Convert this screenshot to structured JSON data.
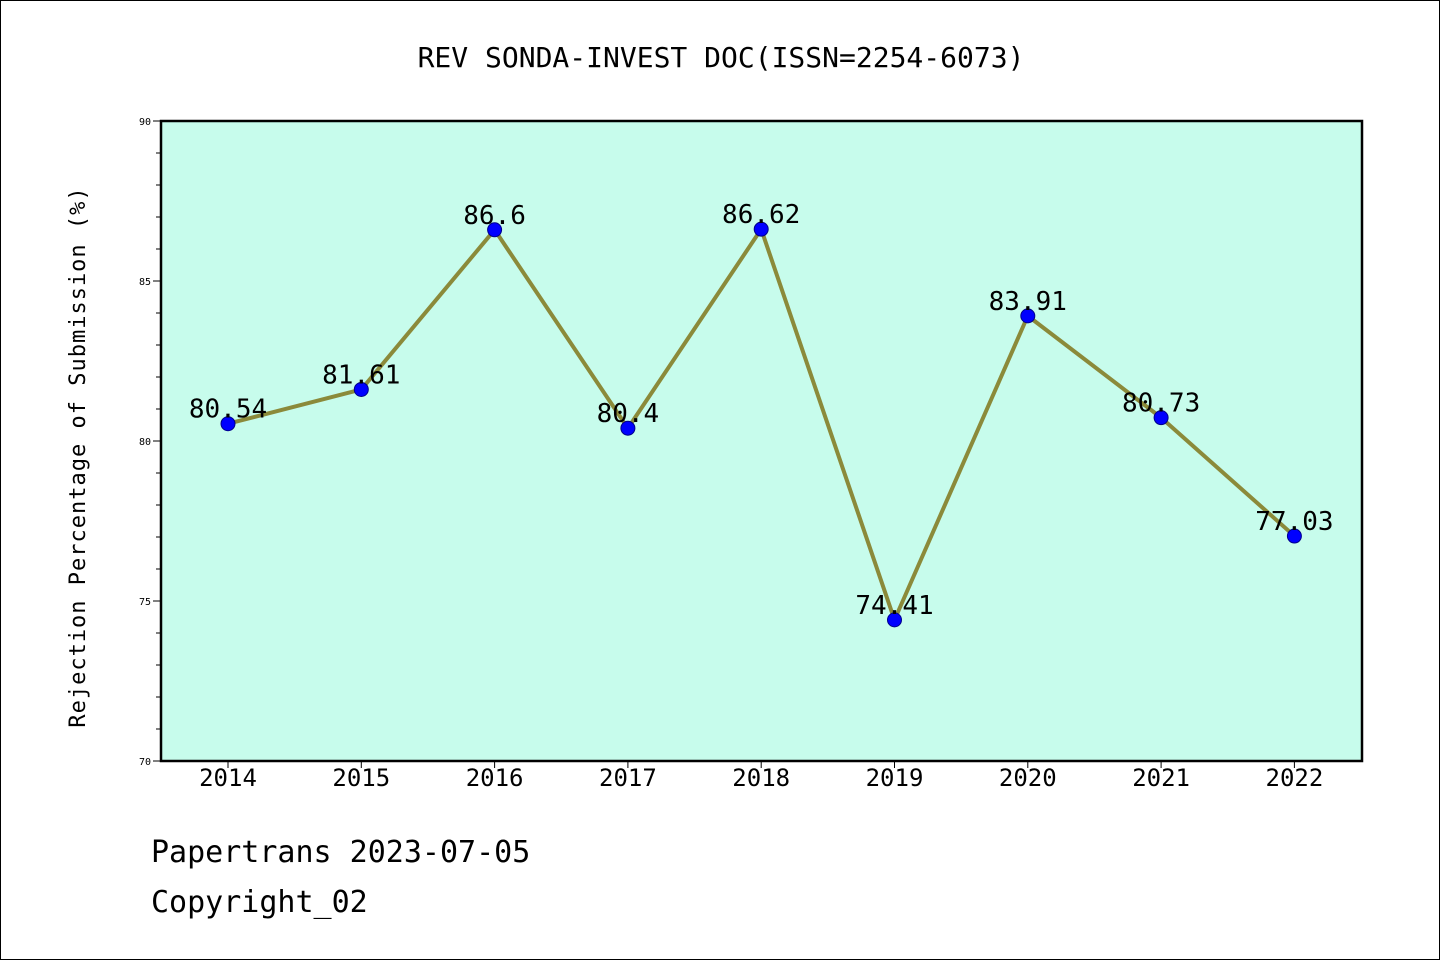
{
  "chart_data": {
    "type": "line",
    "title": "REV SONDA-INVEST DOC(ISSN=2254-6073)",
    "xlabel": "",
    "ylabel": "Rejection Percentage of Submission (%)",
    "categories": [
      "2014",
      "2015",
      "2016",
      "2017",
      "2018",
      "2019",
      "2020",
      "2021",
      "2022"
    ],
    "series": [
      {
        "values": [
          80.54,
          81.61,
          86.6,
          80.4,
          86.62,
          74.41,
          83.91,
          80.73,
          77.03
        ],
        "labels": [
          "80.54",
          "81.61",
          "86.6",
          "80.4",
          "86.62",
          "74.41",
          "83.91",
          "80.73",
          "77.03"
        ]
      }
    ],
    "ylim": [
      70,
      90
    ],
    "yticks": [
      70,
      75,
      80,
      85,
      90
    ],
    "ytick_labels": [
      "70",
      "75",
      "80",
      "85",
      "90"
    ],
    "grid": false,
    "colors": {
      "plot_background": "#c7fcec",
      "line": "#8b8a3a",
      "marker": "#0000ff"
    }
  },
  "footer": {
    "line1": "Papertrans 2023-07-05",
    "line2": "Copyright_02"
  }
}
